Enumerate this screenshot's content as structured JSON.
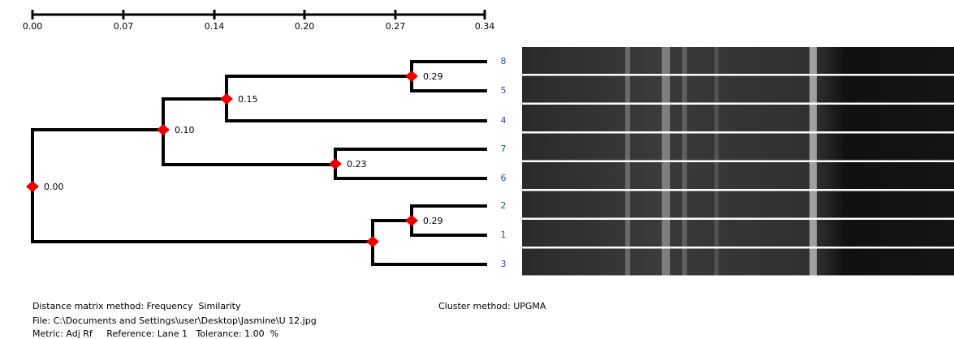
{
  "scale": {
    "ticks": [
      "0.00",
      "0.07",
      "0.14",
      "0.20",
      "0.27",
      "0.34"
    ]
  },
  "nodes": [
    {
      "label": "0.00"
    },
    {
      "label": "0.10"
    },
    {
      "label": "0.15"
    },
    {
      "label": "0.29"
    },
    {
      "label": "0.23"
    },
    {
      "label": "0.29"
    }
  ],
  "leaves": [
    "8",
    "5",
    "4",
    "7",
    "6",
    "2",
    "1",
    "3"
  ],
  "footer": {
    "distance_method": "Distance matrix method: Frequency  Similarity",
    "cluster_method": "Cluster method: UPGMA",
    "file": "File: C:\\Documents and Settings\\user\\Desktop\\Jasmine\\U 12.jpg",
    "metric": "Metric: Adj Rf     Reference: Lane 1   Tolerance: 1.00  %"
  }
}
